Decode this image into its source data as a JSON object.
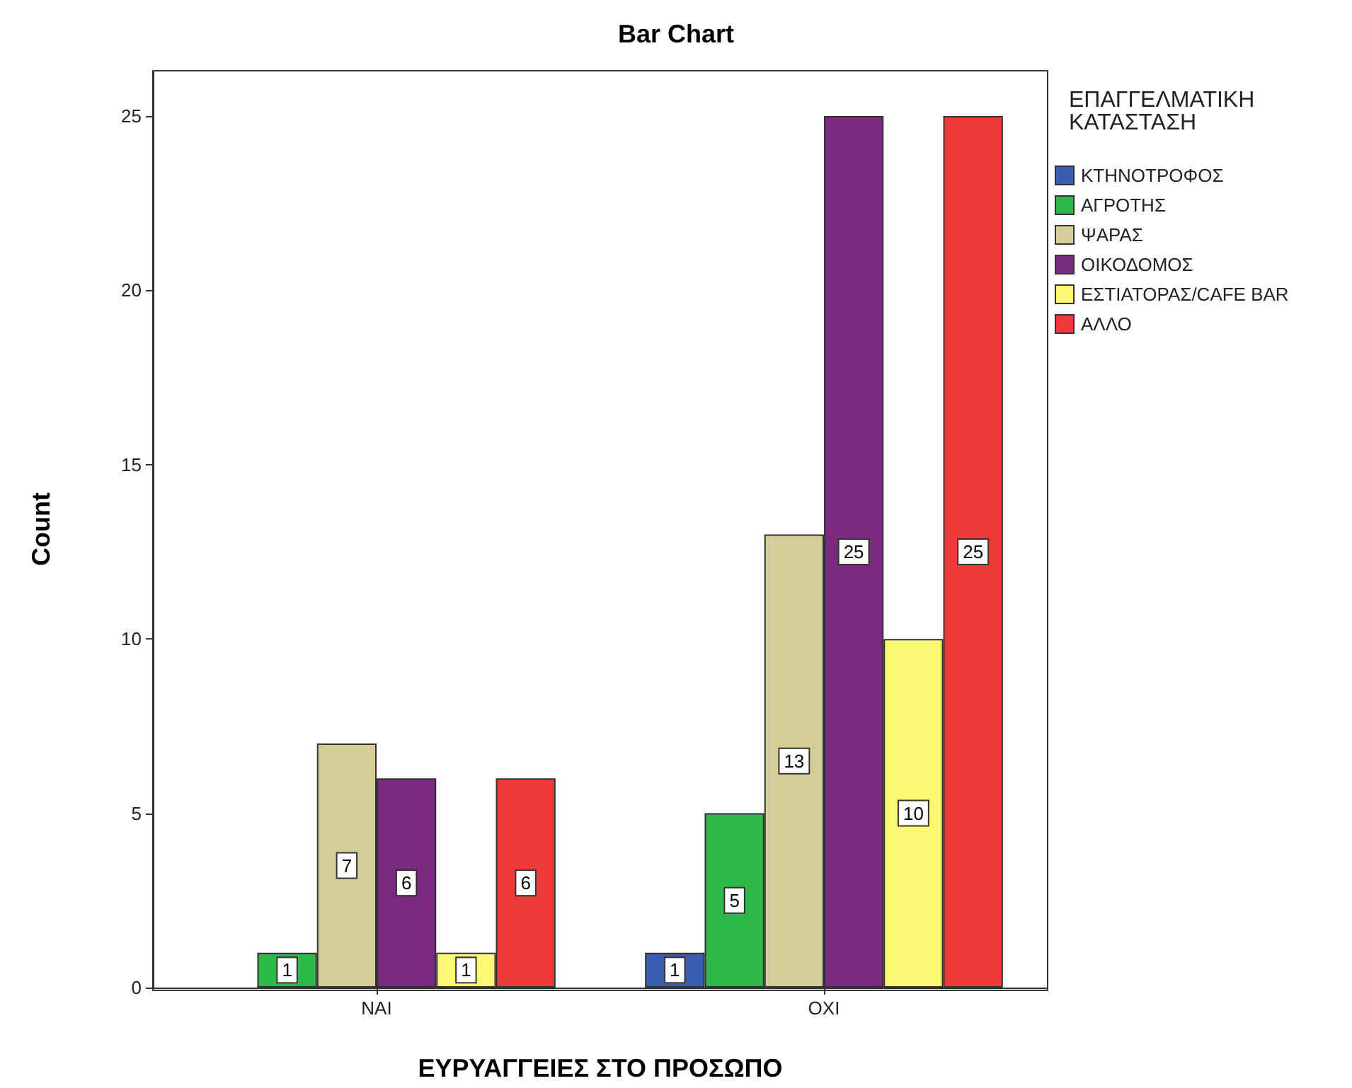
{
  "chart_data": {
    "type": "bar",
    "title": "Bar Chart",
    "xlabel": "ΕΥΡΥΑΓΓΕΙΕΣ ΣΤΟ ΠΡΟΣΩΠΟ",
    "ylabel": "Count",
    "legend_title": "ΕΠΑΓΓΕΛΜΑΤΙΚΗ ΚΑΤΑΣΤΑΣΗ",
    "categories": [
      "ΝΑΙ",
      "ΟΧΙ"
    ],
    "series": [
      {
        "name": "ΚΤΗΝΟΤΡΟΦΟΣ",
        "color": "#3a5fb0",
        "values": [
          null,
          1
        ]
      },
      {
        "name": "ΑΓΡΟΤΗΣ",
        "color": "#2db84a",
        "values": [
          1,
          5
        ]
      },
      {
        "name": "ΨΑΡΑΣ",
        "color": "#d3ce97",
        "values": [
          7,
          13
        ]
      },
      {
        "name": "ΟΙΚΟΔΟΜΟΣ",
        "color": "#7b2a7f",
        "values": [
          6,
          25
        ]
      },
      {
        "name": "ΕΣΤΙΑΤΟΡΑΣ/CAFE BAR",
        "color": "#fbf873",
        "values": [
          1,
          10
        ]
      },
      {
        "name": "ΑΛΛΟ",
        "color": "#ee3a3a",
        "values": [
          6,
          25
        ]
      }
    ],
    "ylim": [
      0,
      26.3
    ],
    "yticks": [
      0,
      5,
      10,
      15,
      20,
      25
    ],
    "grid": false,
    "legend": "top right",
    "data_labels": true
  }
}
